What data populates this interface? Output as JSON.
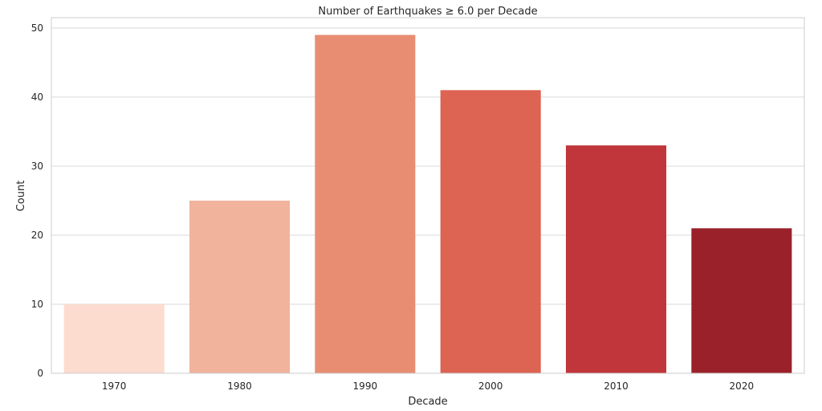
{
  "chart_data": {
    "type": "bar",
    "title": "Number of Earthquakes ≥ 6.0 per Decade",
    "xlabel": "Decade",
    "ylabel": "Count",
    "categories": [
      "1970",
      "1980",
      "1990",
      "2000",
      "2010",
      "2020"
    ],
    "values": [
      10,
      25,
      49,
      41,
      33,
      21
    ],
    "colors": [
      "#fbdcce",
      "#f1b39c",
      "#e88d72",
      "#dd6352",
      "#c0363a",
      "#9a2129"
    ],
    "ylim": [
      0,
      51.5
    ],
    "yticks": [
      0,
      10,
      20,
      30,
      40,
      50
    ],
    "grid": true,
    "legend": "none"
  }
}
